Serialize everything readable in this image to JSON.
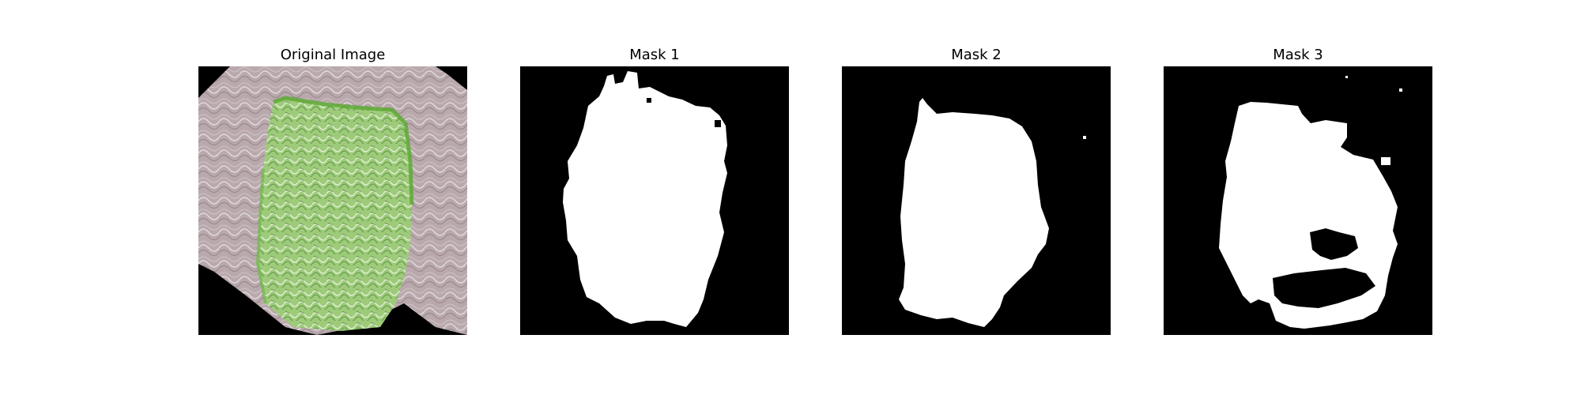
{
  "figure": {
    "panels": [
      {
        "title": "Original Image",
        "kind": "photo"
      },
      {
        "title": "Mask 1",
        "kind": "mask"
      },
      {
        "title": "Mask 2",
        "kind": "mask"
      },
      {
        "title": "Mask 3",
        "kind": "mask"
      }
    ]
  },
  "colors": {
    "mask_background": "#000000",
    "mask_foreground": "#ffffff",
    "photo_background": "#b9a9ad",
    "photo_subject": "#9ecb7a"
  }
}
